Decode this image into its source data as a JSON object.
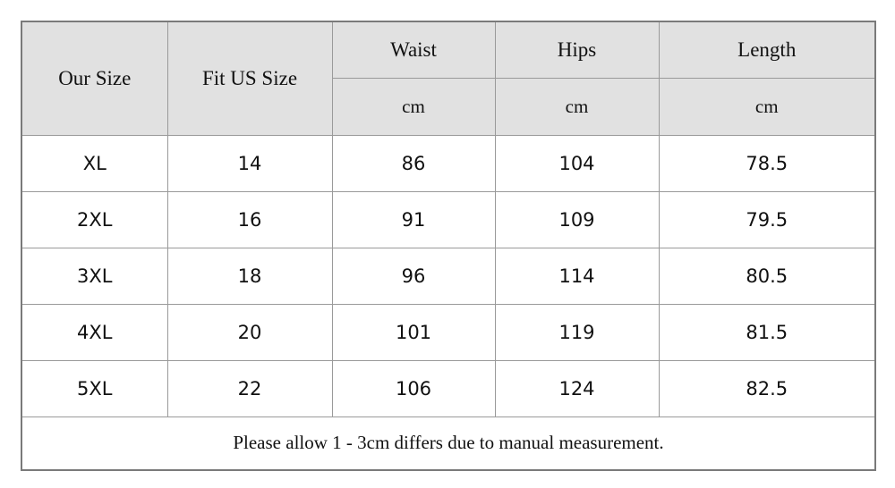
{
  "table": {
    "header": {
      "size": "Our Size",
      "fit": "Fit US Size",
      "columns": [
        {
          "name": "Waist",
          "unit": "cm"
        },
        {
          "name": "Hips",
          "unit": "cm"
        },
        {
          "name": "Length",
          "unit": "cm"
        }
      ]
    },
    "rows": [
      [
        "XL",
        14,
        86,
        104,
        78.5
      ],
      [
        "2XL",
        16,
        91,
        109,
        79.5
      ],
      [
        "3XL",
        18,
        96,
        114,
        80.5
      ],
      [
        "4XL",
        20,
        101,
        119,
        81.5
      ],
      [
        "5XL",
        22,
        106,
        124,
        82.5
      ]
    ],
    "note": "Please allow 1 - 3cm differs due to manual measurement."
  }
}
